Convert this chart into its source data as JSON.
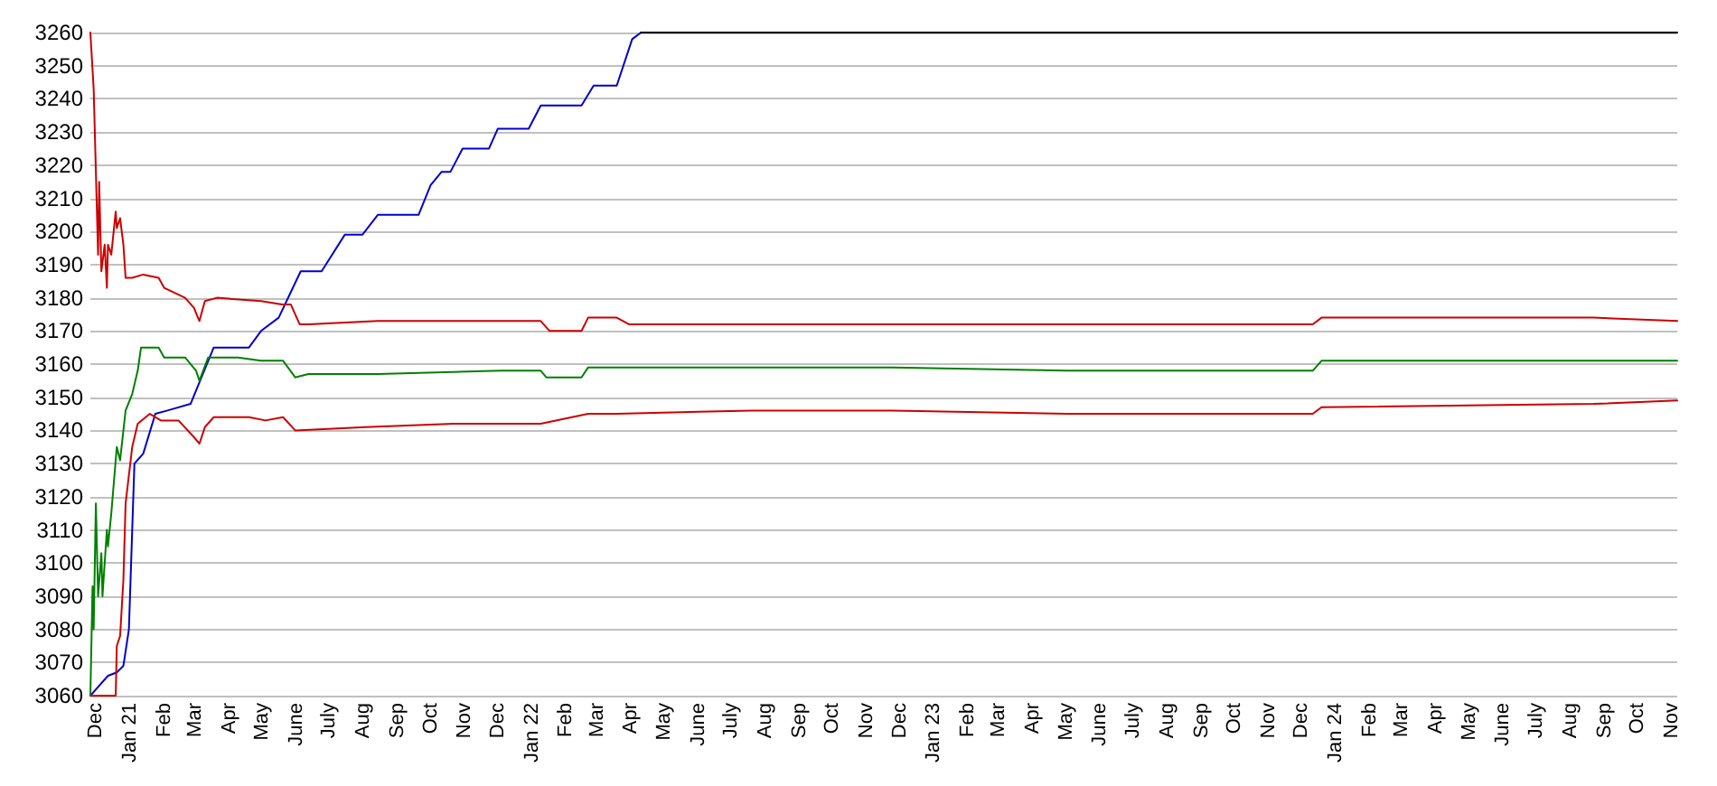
{
  "chart_data": {
    "type": "line",
    "xlim": [
      "2020-11-26",
      "2024-11-06"
    ],
    "ylim": [
      3060,
      3260
    ],
    "yticks": [
      3060,
      3070,
      3080,
      3090,
      3100,
      3110,
      3120,
      3130,
      3140,
      3150,
      3160,
      3170,
      3180,
      3190,
      3200,
      3210,
      3220,
      3230,
      3240,
      3250,
      3260
    ],
    "xticks": [
      {
        "value": "2020-12",
        "label": "Dec"
      },
      {
        "value": "2021-01",
        "label": "Jan 21"
      },
      {
        "value": "2021-02",
        "label": "Feb"
      },
      {
        "value": "2021-03",
        "label": "Mar"
      },
      {
        "value": "2021-04",
        "label": "Apr"
      },
      {
        "value": "2021-05",
        "label": "May"
      },
      {
        "value": "2021-06",
        "label": "June"
      },
      {
        "value": "2021-07",
        "label": "July"
      },
      {
        "value": "2021-08",
        "label": "Aug"
      },
      {
        "value": "2021-09",
        "label": "Sep"
      },
      {
        "value": "2021-10",
        "label": "Oct"
      },
      {
        "value": "2021-11",
        "label": "Nov"
      },
      {
        "value": "2021-12",
        "label": "Dec"
      },
      {
        "value": "2022-01",
        "label": "Jan 22"
      },
      {
        "value": "2022-02",
        "label": "Feb"
      },
      {
        "value": "2022-03",
        "label": "Mar"
      },
      {
        "value": "2022-04",
        "label": "Apr"
      },
      {
        "value": "2022-05",
        "label": "May"
      },
      {
        "value": "2022-06",
        "label": "June"
      },
      {
        "value": "2022-07",
        "label": "July"
      },
      {
        "value": "2022-08",
        "label": "Aug"
      },
      {
        "value": "2022-09",
        "label": "Sep"
      },
      {
        "value": "2022-10",
        "label": "Oct"
      },
      {
        "value": "2022-11",
        "label": "Nov"
      },
      {
        "value": "2022-12",
        "label": "Dec"
      },
      {
        "value": "2023-01",
        "label": "Jan 23"
      },
      {
        "value": "2023-02",
        "label": "Feb"
      },
      {
        "value": "2023-03",
        "label": "Mar"
      },
      {
        "value": "2023-04",
        "label": "Apr"
      },
      {
        "value": "2023-05",
        "label": "May"
      },
      {
        "value": "2023-06",
        "label": "June"
      },
      {
        "value": "2023-07",
        "label": "July"
      },
      {
        "value": "2023-08",
        "label": "Aug"
      },
      {
        "value": "2023-09",
        "label": "Sep"
      },
      {
        "value": "2023-10",
        "label": "Oct"
      },
      {
        "value": "2023-11",
        "label": "Nov"
      },
      {
        "value": "2023-12",
        "label": "Dec"
      },
      {
        "value": "2024-01",
        "label": "Jan 24"
      },
      {
        "value": "2024-02",
        "label": "Feb"
      },
      {
        "value": "2024-03",
        "label": "Mar"
      },
      {
        "value": "2024-04",
        "label": "Apr"
      },
      {
        "value": "2024-05",
        "label": "May"
      },
      {
        "value": "2024-06",
        "label": "June"
      },
      {
        "value": "2024-07",
        "label": "July"
      },
      {
        "value": "2024-08",
        "label": "Aug"
      },
      {
        "value": "2024-09",
        "label": "Sep"
      },
      {
        "value": "2024-10",
        "label": "Oct"
      },
      {
        "value": "2024-11",
        "label": "Nov"
      }
    ],
    "grid": "y",
    "marker": "none",
    "line_style": "solid",
    "series": [
      {
        "color": "#0000cc",
        "x": [
          "2020-11-26",
          "2020-12-12",
          "2020-12-20",
          "2020-12-26",
          "2020-12-31",
          "2021-01-05",
          "2021-01-13",
          "2021-01-24",
          "2021-02-04",
          "2021-02-25",
          "2021-03-18",
          "2021-04-19",
          "2021-04-30",
          "2021-05-16",
          "2021-06-05",
          "2021-06-24",
          "2021-07-15",
          "2021-07-31",
          "2021-08-14",
          "2021-09-20",
          "2021-10-01",
          "2021-10-11",
          "2021-10-19",
          "2021-10-30",
          "2021-11-23",
          "2021-12-01",
          "2021-12-29",
          "2022-01-09",
          "2022-02-15",
          "2022-02-26",
          "2022-03-19",
          "2022-04-02",
          "2022-04-10"
        ],
        "values": [
          3060,
          3066,
          3067,
          3069,
          3080,
          3130,
          3133,
          3145,
          3146,
          3148,
          3165,
          3165,
          3170,
          3174,
          3188,
          3188,
          3199,
          3199,
          3205,
          3205,
          3214,
          3218,
          3218,
          3225,
          3225,
          3231,
          3231,
          3238,
          3238,
          3244,
          3244,
          3258,
          3260
        ]
      },
      {
        "color": "#000000",
        "x": [
          "2022-04-10",
          "2024-11-06"
        ],
        "values": [
          3260,
          3260
        ]
      },
      {
        "color": "#cc0000",
        "x": [
          "2020-11-26",
          "2020-11-29",
          "2020-12-01",
          "2020-12-03",
          "2020-12-04",
          "2020-12-06",
          "2020-12-09",
          "2020-12-11",
          "2020-12-12",
          "2020-12-15",
          "2020-12-19",
          "2020-12-20",
          "2020-12-23",
          "2020-12-26",
          "2020-12-28",
          "2021-01-03",
          "2021-01-13",
          "2021-01-27",
          "2021-02-01",
          "2021-02-20",
          "2021-02-28",
          "2021-03-05",
          "2021-03-10",
          "2021-03-21",
          "2021-04-30",
          "2021-05-19",
          "2021-05-27",
          "2021-06-04",
          "2021-06-12",
          "2021-08-14",
          "2022-01-09",
          "2022-01-17",
          "2022-02-15",
          "2022-02-21",
          "2022-03-19",
          "2022-03-30",
          "2022-11-24",
          "2023-05-02",
          "2023-10-08",
          "2023-12-11",
          "2023-12-19",
          "2024-08-22",
          "2024-11-06"
        ],
        "values": [
          3260,
          3243,
          3218,
          3193,
          3215,
          3188,
          3196,
          3183,
          3196,
          3193,
          3206,
          3201,
          3204,
          3196,
          3186,
          3186,
          3187,
          3186,
          3183,
          3180,
          3177,
          3173,
          3179,
          3180,
          3179,
          3178,
          3178,
          3172,
          3172,
          3173,
          3173,
          3170,
          3170,
          3174,
          3174,
          3172,
          3172,
          3172,
          3172,
          3172,
          3174,
          3174,
          3173
        ]
      },
      {
        "color": "#008000",
        "x": [
          "2020-11-26",
          "2020-11-28",
          "2020-11-29",
          "2020-12-01",
          "2020-12-03",
          "2020-12-06",
          "2020-12-07",
          "2020-12-11",
          "2020-12-12",
          "2020-12-15",
          "2020-12-20",
          "2020-12-23",
          "2020-12-28",
          "2021-01-03",
          "2021-01-08",
          "2021-01-11",
          "2021-01-27",
          "2021-02-01",
          "2021-02-20",
          "2021-03-02",
          "2021-03-05",
          "2021-03-13",
          "2021-04-09",
          "2021-04-30",
          "2021-05-20",
          "2021-05-31",
          "2021-06-12",
          "2021-08-14",
          "2021-12-04",
          "2022-01-09",
          "2022-01-14",
          "2022-02-15",
          "2022-02-21",
          "2022-11-24",
          "2023-05-02",
          "2023-12-11",
          "2023-12-19",
          "2024-11-06"
        ],
        "values": [
          3060,
          3093,
          3080,
          3118,
          3090,
          3103,
          3090,
          3110,
          3105,
          3115,
          3135,
          3131,
          3146,
          3151,
          3158,
          3165,
          3165,
          3162,
          3162,
          3158,
          3155,
          3162,
          3162,
          3161,
          3161,
          3156,
          3157,
          3157,
          3158,
          3158,
          3156,
          3156,
          3159,
          3159,
          3158,
          3158,
          3161,
          3161
        ]
      },
      {
        "color": "#cc0000",
        "x": [
          "2020-11-26",
          "2020-12-19",
          "2020-12-20",
          "2020-12-23",
          "2020-12-26",
          "2020-12-28",
          "2021-01-03",
          "2021-01-08",
          "2021-01-19",
          "2021-01-29",
          "2021-02-14",
          "2021-02-28",
          "2021-03-05",
          "2021-03-10",
          "2021-03-18",
          "2021-04-19",
          "2021-05-04",
          "2021-05-20",
          "2021-05-31",
          "2021-08-03",
          "2021-10-22",
          "2022-01-09",
          "2022-02-21",
          "2022-03-19",
          "2022-07-19",
          "2022-11-24",
          "2023-05-02",
          "2023-12-11",
          "2023-12-19",
          "2024-08-22",
          "2024-11-06"
        ],
        "values": [
          3060,
          3060,
          3075,
          3078,
          3095,
          3118,
          3135,
          3142,
          3145,
          3143,
          3143,
          3138,
          3136,
          3141,
          3144,
          3144,
          3143,
          3144,
          3140,
          3141,
          3142,
          3142,
          3145,
          3145,
          3146,
          3146,
          3145,
          3145,
          3147,
          3148,
          3149
        ]
      }
    ]
  }
}
